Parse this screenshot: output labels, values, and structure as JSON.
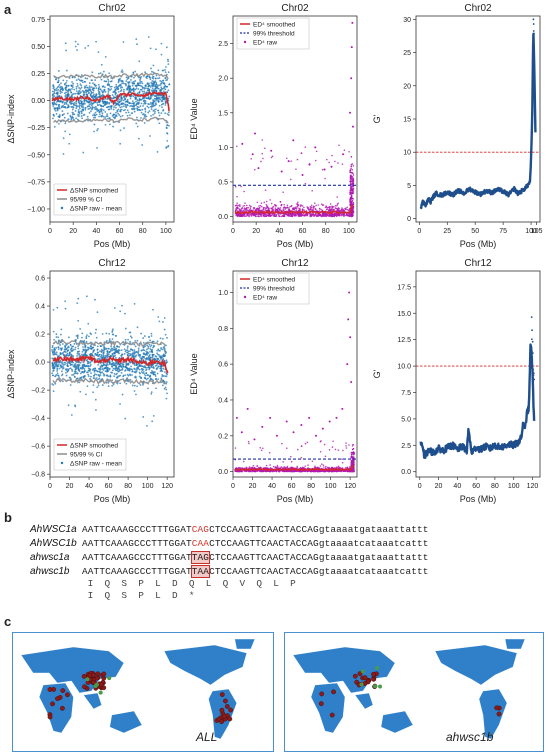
{
  "labels": {
    "a": "a",
    "b": "b",
    "c": "c"
  },
  "plot_text": {
    "pos_label": "Pos (Mb)",
    "snp_ylabel": "ΔSNP-index",
    "ed_ylabel": "ED⁴ Value",
    "g_ylabel": "G'",
    "snp_legend": [
      "ΔSNP smoothed",
      "95/99 % CI",
      "ΔSNP raw - mean"
    ],
    "ed_legend": [
      "ED⁴ smoothed",
      "99% threshold",
      "ED⁴ raw"
    ]
  },
  "colors": {
    "snp_raw": "#1f77b4",
    "snp_smooth": "#d62728",
    "snp_ci": "#8c8c8c",
    "ed_raw": "#b019b0",
    "ed_smooth": "#d62728",
    "ed_threshold": "#1f2fa8",
    "g_line": "#1f4e8c",
    "g_threshold": "#d62728"
  },
  "chart_data": [
    {
      "type": "scatter",
      "title": "Chr02",
      "xlabel": "Pos (Mb)",
      "ylabel": "ΔSNP-index",
      "xlim": [
        0,
        107
      ],
      "ylim": [
        -1.12,
        0.78
      ],
      "xticks": [
        0,
        20,
        40,
        60,
        80,
        100
      ],
      "yticks": [
        -1.0,
        -0.75,
        -0.5,
        -0.25,
        0.0,
        0.25,
        0.5,
        0.75
      ],
      "ytick_labels": [
        "−1.00",
        "−0.75",
        "−0.50",
        "−0.25",
        "0.00",
        "0.25",
        "0.50",
        "0.75"
      ],
      "smoothed_x": [
        2,
        10,
        20,
        30,
        40,
        50,
        55,
        60,
        70,
        80,
        90,
        100,
        103
      ],
      "smoothed_y": [
        0.0,
        0.02,
        0.01,
        0.03,
        0.0,
        0.04,
        -0.02,
        0.05,
        0.06,
        0.05,
        0.07,
        0.06,
        -0.1
      ],
      "ci_upper": 0.22,
      "ci_lower": -0.19,
      "ci_outer": 0.3,
      "raw_spread": 0.35,
      "tail_start": 100,
      "tail_spread": 0.95
    },
    {
      "type": "scatter",
      "title": "Chr02",
      "xlabel": "Pos (Mb)",
      "ylabel": "ED⁴ Value",
      "xlim": [
        0,
        107
      ],
      "ylim": [
        -0.08,
        2.9
      ],
      "xticks": [
        0,
        20,
        40,
        60,
        80,
        100
      ],
      "yticks": [
        0.0,
        0.5,
        1.0,
        1.5,
        2.0,
        2.5
      ],
      "ytick_labels": [
        "0.0",
        "0.5",
        "1.0",
        "1.5",
        "2.0",
        "2.5"
      ],
      "threshold": 0.45,
      "smoothed_level": 0.06,
      "outliers_x": [
        8,
        17,
        19,
        22,
        33,
        42,
        48,
        52,
        60,
        66,
        71,
        79,
        85,
        95,
        101,
        102,
        102.5,
        103,
        103.5
      ],
      "outliers_y": [
        1.05,
        0.9,
        1.2,
        0.7,
        0.95,
        0.65,
        0.8,
        1.1,
        0.6,
        0.75,
        1.0,
        0.68,
        0.72,
        0.9,
        1.5,
        2.0,
        2.45,
        2.8,
        1.3
      ]
    },
    {
      "type": "line",
      "title": "Chr02",
      "xlabel": "Pos (Mb)",
      "ylabel": "G'",
      "xlim": [
        -3,
        108
      ],
      "ylim": [
        -0.5,
        30.5
      ],
      "xticks": [
        0,
        25,
        50,
        75,
        100,
        105
      ],
      "xtick_labels": [
        "0",
        "25",
        "50",
        "75",
        "100",
        "105"
      ],
      "yticks": [
        0,
        5,
        10,
        15,
        20,
        25,
        30
      ],
      "threshold": 10,
      "x": [
        1,
        3,
        6,
        8,
        10,
        12,
        15,
        20,
        25,
        30,
        35,
        40,
        45,
        50,
        55,
        60,
        65,
        70,
        75,
        80,
        85,
        88,
        92,
        96,
        99,
        100,
        101,
        102,
        103,
        104
      ],
      "y": [
        1.5,
        2.5,
        2.0,
        3.0,
        2.5,
        3.2,
        3.8,
        3.5,
        4.0,
        3.6,
        4.2,
        3.8,
        4.5,
        4.0,
        3.7,
        4.2,
        3.9,
        4.4,
        4.1,
        3.6,
        4.5,
        3.8,
        4.2,
        4.8,
        5.5,
        9.0,
        15.0,
        28.5,
        22.0,
        12.0
      ]
    },
    {
      "type": "scatter",
      "title": "Chr12",
      "xlabel": "Pos (Mb)",
      "ylabel": "ΔSNP-index",
      "xlim": [
        0,
        127
      ],
      "ylim": [
        -0.82,
        0.65
      ],
      "xticks": [
        0,
        20,
        40,
        60,
        80,
        100,
        120
      ],
      "yticks": [
        -0.8,
        -0.6,
        -0.4,
        -0.2,
        0.0,
        0.2,
        0.4,
        0.6
      ],
      "ytick_labels": [
        "−0.8",
        "−0.6",
        "−0.4",
        "−0.2",
        "0.0",
        "0.2",
        "0.4",
        "0.6"
      ],
      "smoothed_x": [
        3,
        10,
        20,
        30,
        40,
        50,
        60,
        70,
        80,
        90,
        100,
        110,
        118,
        121
      ],
      "smoothed_y": [
        0.01,
        0.03,
        0.02,
        0.02,
        0.03,
        0.0,
        0.02,
        0.01,
        0.02,
        0.0,
        -0.01,
        0.01,
        -0.02,
        -0.1
      ],
      "ci_upper": 0.13,
      "ci_lower": -0.14,
      "ci_outer": 0.22,
      "raw_spread": 0.28,
      "tail_start": 117,
      "tail_spread": 0.5
    },
    {
      "type": "scatter",
      "title": "Chr12",
      "xlabel": "Pos (Mb)",
      "ylabel": "ED⁴ Value",
      "xlim": [
        0,
        127
      ],
      "ylim": [
        -0.03,
        1.12
      ],
      "xticks": [
        0,
        20,
        40,
        60,
        80,
        100,
        120
      ],
      "yticks": [
        0.0,
        0.2,
        0.4,
        0.6,
        0.8,
        1.0
      ],
      "ytick_labels": [
        "0.0",
        "0.2",
        "0.4",
        "0.6",
        "0.8",
        "1.0"
      ],
      "threshold": 0.07,
      "smoothed_level": 0.012,
      "outliers_x": [
        4,
        9,
        15,
        22,
        30,
        38,
        45,
        55,
        62,
        70,
        78,
        85,
        92,
        99,
        106,
        112,
        117,
        118,
        119,
        120,
        121
      ],
      "outliers_y": [
        0.3,
        0.22,
        0.35,
        0.18,
        0.25,
        0.3,
        0.2,
        0.28,
        0.22,
        0.26,
        0.3,
        0.2,
        0.24,
        0.28,
        0.3,
        0.35,
        0.6,
        0.85,
        1.0,
        0.75,
        0.5
      ]
    },
    {
      "type": "line",
      "title": "Chr12",
      "xlabel": "Pos (Mb)",
      "ylabel": "G'",
      "xlim": [
        -4,
        128
      ],
      "ylim": [
        -0.5,
        19.0
      ],
      "xticks": [
        0,
        20,
        40,
        60,
        80,
        100,
        120
      ],
      "yticks": [
        0.0,
        2.5,
        5.0,
        7.5,
        10.0,
        12.5,
        15.0,
        17.5
      ],
      "ytick_labels": [
        "0.0",
        "2.5",
        "5.0",
        "7.5",
        "10.0",
        "12.5",
        "15.0",
        "17.5"
      ],
      "threshold": 10,
      "x": [
        1,
        5,
        10,
        15,
        20,
        25,
        30,
        35,
        40,
        45,
        50,
        52,
        55,
        60,
        65,
        70,
        75,
        80,
        85,
        90,
        95,
        100,
        105,
        108,
        110,
        112,
        114,
        116,
        117,
        118,
        119,
        120,
        121,
        122
      ],
      "y": [
        2.8,
        1.5,
        2.0,
        1.8,
        2.2,
        2.0,
        2.3,
        2.5,
        2.1,
        2.4,
        2.0,
        4.0,
        1.8,
        2.3,
        2.1,
        2.4,
        2.2,
        2.5,
        2.3,
        2.4,
        2.6,
        2.5,
        2.8,
        3.2,
        4.5,
        4.0,
        5.5,
        6.0,
        8.5,
        12.5,
        11.0,
        9.5,
        6.5,
        4.5
      ]
    }
  ],
  "sequences": [
    {
      "name": "AhWSC1a",
      "pre": "AATTCAAAGCCCTTTGGAT",
      "mid": "CAG",
      "post": "CTCCAAGTTCAACTACCAGgtaaaatgataaattattt",
      "style": "hl"
    },
    {
      "name": "AhWSC1b",
      "pre": "AATTCAAAGCCCTTTGGAT",
      "mid": "CAA",
      "post": "CTCCAAGTTCAACTACCAGgtaaaatcataaatcattt",
      "style": "hl"
    },
    {
      "name": "ahwsc1a",
      "pre": "AATTCAAAGCCCTTTGGAT",
      "mid": "TAG",
      "post": "CTCCAAGTTCAACTACCAGgtaaaatgataaattattt",
      "style": "box"
    },
    {
      "name": "ahwsc1b",
      "pre": "AATTCAAAGCCCTTTGGAT",
      "mid": "TAA",
      "post": "CTCCAAGTTCAACTACCAGgtaaaatcataaatcattt",
      "style": "box"
    }
  ],
  "aa_rows": [
    " I  Q  S  P  L  D  Q  L  Q  V  Q  L  P",
    " I  Q  S  P  L  D  *"
  ],
  "maps": [
    {
      "caption": "ALL"
    },
    {
      "caption": "ahwsc1b"
    }
  ]
}
